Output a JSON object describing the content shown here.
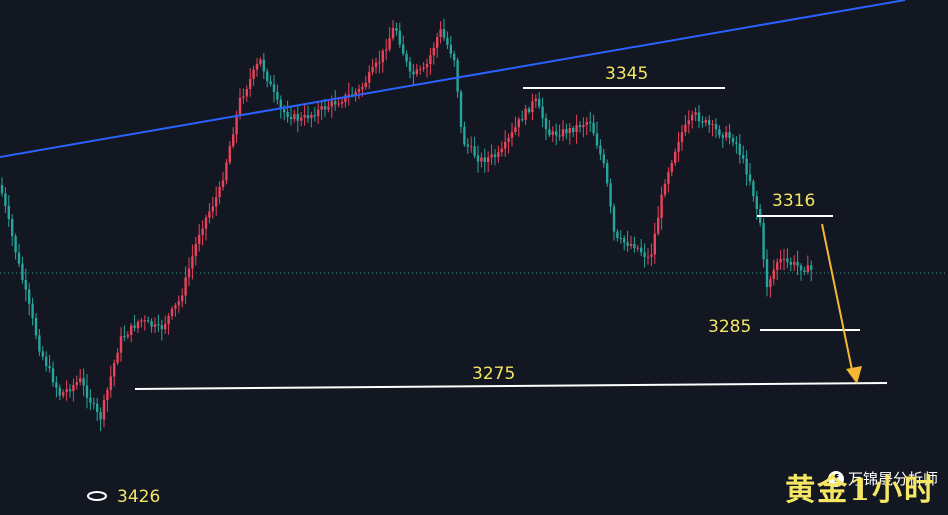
{
  "chart_data": {
    "type": "candlestick",
    "title": "",
    "grid": false,
    "colors": {
      "up": "#e8435b",
      "down": "#26a69a",
      "trendline": "#2962ff",
      "levels": "#ffffff",
      "labels": "#f5e663",
      "arrow": "#f5b731"
    },
    "levels": [
      {
        "label": "3345"
      },
      {
        "label": "3316"
      },
      {
        "label": "3285"
      },
      {
        "label": "3275"
      },
      {
        "label": "3426"
      }
    ],
    "watermark": "黄金1小时",
    "credit": "万锦晟分析师",
    "credit_icon": "zhihu-icon"
  }
}
